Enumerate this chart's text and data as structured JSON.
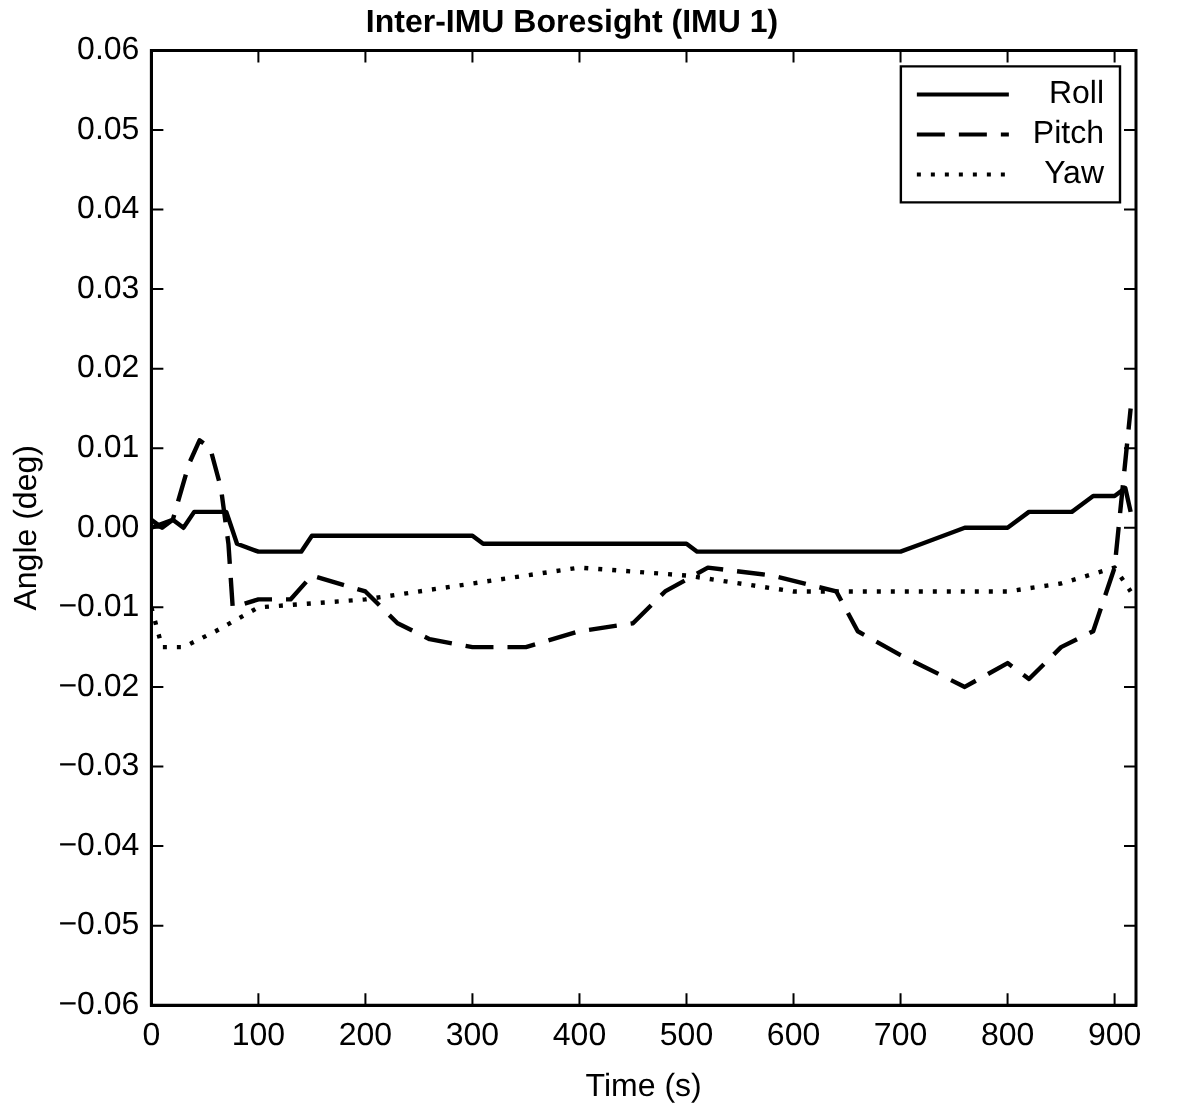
{
  "chart_data": {
    "type": "line",
    "title": "Inter-IMU Boresight (IMU 1)",
    "xlabel": "Time (s)",
    "ylabel": "Angle (deg)",
    "xlim": [
      0,
      920
    ],
    "xticks": [
      0,
      100,
      200,
      300,
      400,
      500,
      600,
      700,
      800,
      900
    ],
    "ylim": [
      -0.06,
      0.06
    ],
    "yticks": [
      {
        "value": -0.06,
        "label": "−0.06"
      },
      {
        "value": -0.05,
        "label": "−0.05"
      },
      {
        "value": -0.04,
        "label": "−0.04"
      },
      {
        "value": -0.03,
        "label": "−0.03"
      },
      {
        "value": -0.02,
        "label": "−0.02"
      },
      {
        "value": -0.01,
        "label": "−0.01"
      },
      {
        "value": 0,
        "label": "0.00"
      },
      {
        "value": 0.01,
        "label": "0.01"
      },
      {
        "value": 0.02,
        "label": "0.02"
      },
      {
        "value": 0.03,
        "label": "0.03"
      },
      {
        "value": 0.04,
        "label": "0.04"
      },
      {
        "value": 0.05,
        "label": "0.05"
      },
      {
        "value": 0.06,
        "label": "0.06"
      }
    ],
    "grid": false,
    "legend": "top right",
    "marker": "none",
    "series": [
      {
        "name": "Roll",
        "color": "#000000",
        "line_style": "solid",
        "x": [
          0,
          10,
          20,
          30,
          40,
          70,
          75,
          80,
          100,
          140,
          150,
          300,
          310,
          500,
          510,
          700,
          720,
          760,
          800,
          820,
          860,
          880,
          900,
          910,
          915
        ],
        "values": [
          0.001,
          0.0,
          0.001,
          0.0,
          0.002,
          0.002,
          0.0,
          -0.002,
          -0.003,
          -0.003,
          -0.001,
          -0.001,
          -0.002,
          -0.002,
          -0.003,
          -0.003,
          -0.002,
          0.0,
          0.0,
          0.002,
          0.002,
          0.004,
          0.004,
          0.005,
          0.002
        ]
      },
      {
        "name": "Pitch",
        "color": "#000000",
        "line_style": "dashed",
        "x": [
          0,
          20,
          35,
          45,
          55,
          65,
          72,
          76,
          100,
          130,
          150,
          200,
          230,
          260,
          300,
          350,
          400,
          450,
          480,
          520,
          580,
          640,
          660,
          700,
          760,
          800,
          820,
          850,
          880,
          900,
          915
        ],
        "values": [
          0.0,
          0.001,
          0.008,
          0.011,
          0.01,
          0.005,
          -0.002,
          -0.01,
          -0.009,
          -0.009,
          -0.006,
          -0.008,
          -0.012,
          -0.014,
          -0.015,
          -0.015,
          -0.013,
          -0.012,
          -0.008,
          -0.005,
          -0.006,
          -0.008,
          -0.013,
          -0.016,
          -0.02,
          -0.017,
          -0.019,
          -0.015,
          -0.013,
          -0.005,
          0.015
        ]
      },
      {
        "name": "Yaw",
        "color": "#000000",
        "line_style": "dotted",
        "x": [
          0,
          10,
          30,
          60,
          100,
          200,
          300,
          400,
          500,
          600,
          700,
          800,
          850,
          900,
          915
        ],
        "values": [
          -0.01,
          -0.015,
          -0.015,
          -0.013,
          -0.01,
          -0.009,
          -0.007,
          -0.005,
          -0.006,
          -0.008,
          -0.008,
          -0.008,
          -0.007,
          -0.005,
          -0.008
        ]
      }
    ]
  }
}
